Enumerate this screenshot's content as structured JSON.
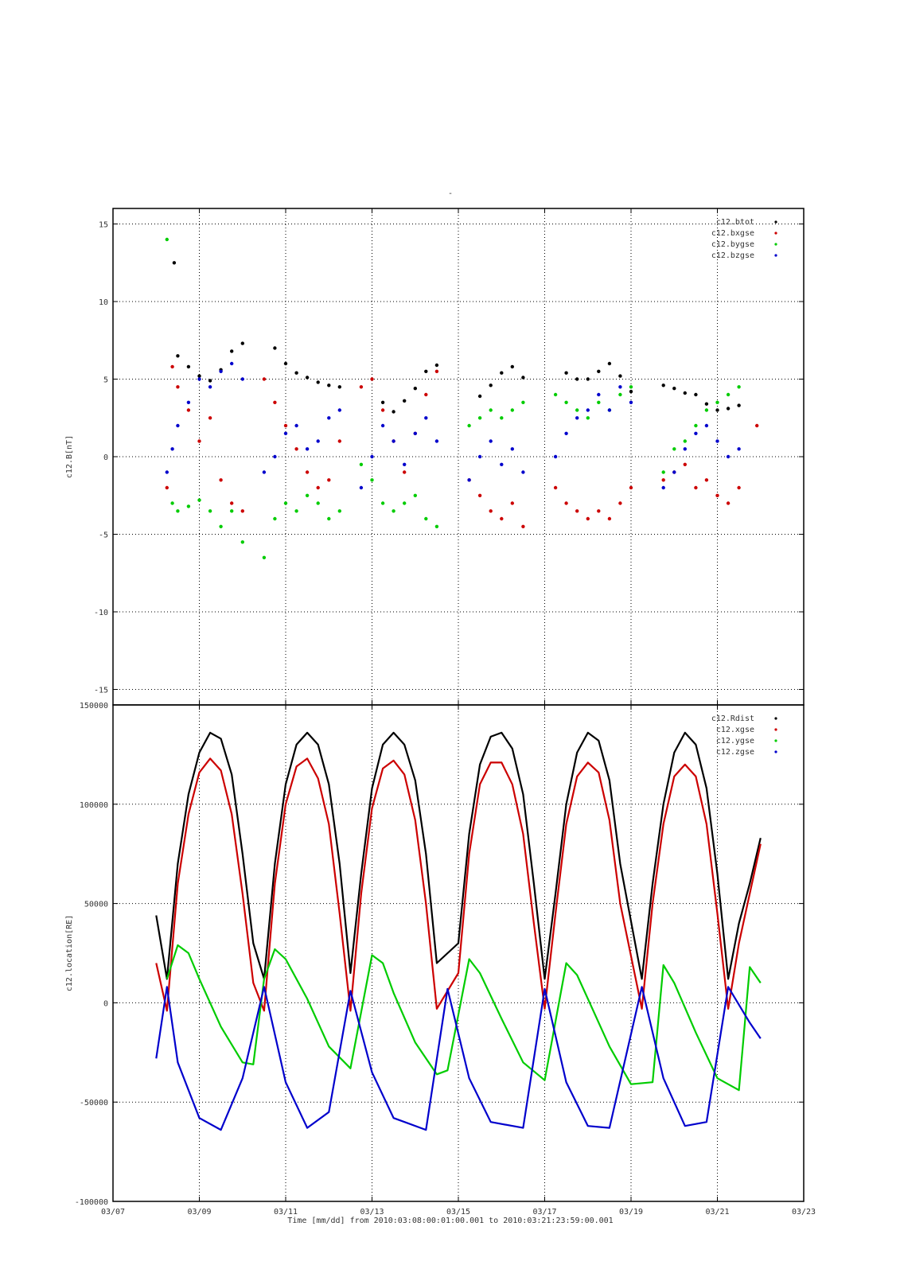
{
  "figure": {
    "top_title": "-",
    "xlabel": "Time [mm/dd]  from 2010:03:08:00:01:00.001  to  2010:03:21:23:59:00.001",
    "x_tick_labels": [
      "03/07",
      "03/09",
      "03/11",
      "03/13",
      "03/15",
      "03/17",
      "03/19",
      "03/21",
      "03/23"
    ]
  },
  "chart_data": [
    {
      "type": "scatter",
      "title": "",
      "xlabel": "",
      "ylabel": "c12.B[nT]",
      "xlim": [
        "2010-03-07",
        "2010-03-23"
      ],
      "ylim": [
        -16,
        16
      ],
      "yticks": [
        -15,
        -10,
        -5,
        0,
        5,
        10,
        15
      ],
      "grid": true,
      "legend_position": "top-right",
      "series": [
        {
          "name": "c12.btot",
          "color": "#000000",
          "x": [
            "03/08 10:00",
            "03/08 12:00",
            "03/08 18:00",
            "03/09 00:00",
            "03/09 06:00",
            "03/09 12:00",
            "03/09 18:00",
            "03/10 00:00",
            "03/10 18:00",
            "03/11 00:00",
            "03/11 06:00",
            "03/11 12:00",
            "03/11 18:00",
            "03/12 00:00",
            "03/12 06:00",
            "03/13 06:00",
            "03/13 12:00",
            "03/13 18:00",
            "03/14 00:00",
            "03/14 06:00",
            "03/14 12:00",
            "03/15 12:00",
            "03/15 18:00",
            "03/16 00:00",
            "03/16 06:00",
            "03/16 12:00",
            "03/17 12:00",
            "03/17 18:00",
            "03/18 00:00",
            "03/18 06:00",
            "03/18 12:00",
            "03/18 18:00",
            "03/19 00:00",
            "03/19 18:00",
            "03/20 00:00",
            "03/20 06:00",
            "03/20 12:00",
            "03/20 18:00",
            "03/21 00:00",
            "03/21 06:00",
            "03/21 12:00"
          ],
          "y": [
            12.5,
            6.5,
            5.8,
            5.2,
            4.9,
            5.6,
            6.8,
            7.3,
            7.0,
            6.0,
            5.4,
            5.1,
            4.8,
            4.6,
            4.5,
            3.5,
            2.9,
            3.6,
            4.4,
            5.5,
            5.9,
            3.9,
            4.6,
            5.4,
            5.8,
            5.1,
            5.4,
            5.0,
            5.0,
            5.5,
            6.0,
            5.2,
            4.2,
            4.6,
            4.4,
            4.1,
            4.0,
            3.4,
            3.0,
            3.1,
            3.3
          ]
        },
        {
          "name": "c12.bxgse",
          "color": "#cc0000",
          "x": [
            "03/08 06:00",
            "03/08 09:00",
            "03/08 12:00",
            "03/08 18:00",
            "03/09 00:00",
            "03/09 06:00",
            "03/09 12:00",
            "03/09 18:00",
            "03/10 00:00",
            "03/10 12:00",
            "03/10 18:00",
            "03/11 00:00",
            "03/11 06:00",
            "03/11 12:00",
            "03/11 18:00",
            "03/12 00:00",
            "03/12 06:00",
            "03/12 18:00",
            "03/13 00:00",
            "03/13 06:00",
            "03/13 12:00",
            "03/13 18:00",
            "03/14 00:00",
            "03/14 06:00",
            "03/14 12:00",
            "03/15 06:00",
            "03/15 12:00",
            "03/15 18:00",
            "03/16 00:00",
            "03/16 06:00",
            "03/16 12:00",
            "03/17 06:00",
            "03/17 12:00",
            "03/17 18:00",
            "03/18 00:00",
            "03/18 06:00",
            "03/18 12:00",
            "03/18 18:00",
            "03/19 00:00",
            "03/19 18:00",
            "03/20 00:00",
            "03/20 06:00",
            "03/20 12:00",
            "03/20 18:00",
            "03/21 00:00",
            "03/21 06:00",
            "03/21 12:00",
            "03/21 22:00"
          ],
          "y": [
            -2.0,
            5.8,
            4.5,
            3.0,
            1.0,
            2.5,
            -1.5,
            -3.0,
            -3.5,
            5.0,
            3.5,
            2.0,
            0.5,
            -1.0,
            -2.0,
            -1.5,
            1.0,
            4.5,
            5.0,
            3.0,
            1.0,
            -1.0,
            1.5,
            4.0,
            5.5,
            -1.5,
            -2.5,
            -3.5,
            -4.0,
            -3.0,
            -4.5,
            -2.0,
            -3.0,
            -3.5,
            -4.0,
            -3.5,
            -4.0,
            -3.0,
            -2.0,
            -1.5,
            -1.0,
            -0.5,
            -2.0,
            -1.5,
            -2.5,
            -3.0,
            -2.0,
            2.0
          ]
        },
        {
          "name": "c12.bygse",
          "color": "#00cc00",
          "x": [
            "03/08 06:00",
            "03/08 09:00",
            "03/08 12:00",
            "03/08 18:00",
            "03/09 00:00",
            "03/09 06:00",
            "03/09 12:00",
            "03/09 18:00",
            "03/10 00:00",
            "03/10 12:00",
            "03/10 18:00",
            "03/11 00:00",
            "03/11 06:00",
            "03/11 12:00",
            "03/11 18:00",
            "03/12 00:00",
            "03/12 06:00",
            "03/12 18:00",
            "03/13 00:00",
            "03/13 06:00",
            "03/13 12:00",
            "03/13 18:00",
            "03/14 00:00",
            "03/14 06:00",
            "03/14 12:00",
            "03/15 06:00",
            "03/15 12:00",
            "03/15 18:00",
            "03/16 00:00",
            "03/16 06:00",
            "03/16 12:00",
            "03/17 06:00",
            "03/17 12:00",
            "03/17 18:00",
            "03/18 00:00",
            "03/18 06:00",
            "03/18 12:00",
            "03/18 18:00",
            "03/19 00:00",
            "03/19 18:00",
            "03/20 00:00",
            "03/20 06:00",
            "03/20 12:00",
            "03/20 18:00",
            "03/21 00:00",
            "03/21 06:00",
            "03/21 12:00"
          ],
          "y": [
            14.0,
            -3.0,
            -3.5,
            -3.2,
            -2.8,
            -3.5,
            -4.5,
            -3.5,
            -5.5,
            -6.5,
            -4.0,
            -3.0,
            -3.5,
            -2.5,
            -3.0,
            -4.0,
            -3.5,
            -0.5,
            -1.5,
            -3.0,
            -3.5,
            -3.0,
            -2.5,
            -4.0,
            -4.5,
            2.0,
            2.5,
            3.0,
            2.5,
            3.0,
            3.5,
            4.0,
            3.5,
            3.0,
            2.5,
            3.5,
            3.0,
            4.0,
            4.5,
            -1.0,
            0.5,
            1.0,
            2.0,
            3.0,
            3.5,
            4.0,
            4.5
          ]
        },
        {
          "name": "c12.bzgse",
          "color": "#0000cc",
          "x": [
            "03/08 06:00",
            "03/08 09:00",
            "03/08 12:00",
            "03/08 18:00",
            "03/09 00:00",
            "03/09 06:00",
            "03/09 12:00",
            "03/09 18:00",
            "03/10 00:00",
            "03/10 12:00",
            "03/10 18:00",
            "03/11 00:00",
            "03/11 06:00",
            "03/11 12:00",
            "03/11 18:00",
            "03/12 00:00",
            "03/12 06:00",
            "03/12 18:00",
            "03/13 00:00",
            "03/13 06:00",
            "03/13 12:00",
            "03/13 18:00",
            "03/14 00:00",
            "03/14 06:00",
            "03/14 12:00",
            "03/15 06:00",
            "03/15 12:00",
            "03/15 18:00",
            "03/16 00:00",
            "03/16 06:00",
            "03/16 12:00",
            "03/17 06:00",
            "03/17 12:00",
            "03/17 18:00",
            "03/18 00:00",
            "03/18 06:00",
            "03/18 12:00",
            "03/18 18:00",
            "03/19 00:00",
            "03/19 18:00",
            "03/20 00:00",
            "03/20 06:00",
            "03/20 12:00",
            "03/20 18:00",
            "03/21 00:00",
            "03/21 06:00",
            "03/21 12:00"
          ],
          "y": [
            -1.0,
            0.5,
            2.0,
            3.5,
            5.0,
            4.5,
            5.5,
            6.0,
            5.0,
            -1.0,
            0.0,
            1.5,
            2.0,
            0.5,
            1.0,
            2.5,
            3.0,
            -2.0,
            0.0,
            2.0,
            1.0,
            -0.5,
            1.5,
            2.5,
            1.0,
            -1.5,
            0.0,
            1.0,
            -0.5,
            0.5,
            -1.0,
            0.0,
            1.5,
            2.5,
            3.0,
            4.0,
            3.0,
            4.5,
            3.5,
            -2.0,
            -1.0,
            0.5,
            1.5,
            2.0,
            1.0,
            0.0,
            0.5
          ]
        }
      ]
    },
    {
      "type": "line",
      "title": "",
      "xlabel": "Time [mm/dd]",
      "ylabel": "c12.location[RE]",
      "xlim": [
        "2010-03-07",
        "2010-03-23"
      ],
      "ylim": [
        -100000,
        150000
      ],
      "yticks": [
        -100000,
        -50000,
        0,
        50000,
        100000,
        150000
      ],
      "grid": true,
      "legend_position": "top-right",
      "series": [
        {
          "name": "c12.Rdist",
          "color": "#000000",
          "x": [
            "03/08 00:00",
            "03/08 06:00",
            "03/08 12:00",
            "03/08 18:00",
            "03/09 00:00",
            "03/09 06:00",
            "03/09 12:00",
            "03/09 18:00",
            "03/10 00:00",
            "03/10 06:00",
            "03/10 12:00",
            "03/10 18:00",
            "03/11 00:00",
            "03/11 06:00",
            "03/11 12:00",
            "03/11 18:00",
            "03/12 00:00",
            "03/12 06:00",
            "03/12 12:00",
            "03/12 18:00",
            "03/13 00:00",
            "03/13 06:00",
            "03/13 12:00",
            "03/13 18:00",
            "03/14 00:00",
            "03/14 06:00",
            "03/14 12:00",
            "03/15 00:00",
            "03/15 06:00",
            "03/15 12:00",
            "03/15 18:00",
            "03/16 00:00",
            "03/16 06:00",
            "03/16 12:00",
            "03/16 18:00",
            "03/17 00:00",
            "03/17 06:00",
            "03/17 12:00",
            "03/17 18:00",
            "03/18 00:00",
            "03/18 06:00",
            "03/18 12:00",
            "03/18 18:00",
            "03/19 06:00",
            "03/19 12:00",
            "03/19 18:00",
            "03/20 00:00",
            "03/20 06:00",
            "03/20 12:00",
            "03/20 18:00",
            "03/21 00:00",
            "03/21 06:00",
            "03/21 12:00",
            "03/21 18:00",
            "03/22 00:00"
          ],
          "y": [
            44000,
            12000,
            70000,
            105000,
            126000,
            136000,
            133000,
            115000,
            75000,
            30000,
            12000,
            70000,
            110000,
            130000,
            136000,
            130000,
            110000,
            70000,
            15000,
            65000,
            108000,
            130000,
            136000,
            130000,
            112000,
            75000,
            20000,
            30000,
            85000,
            120000,
            134000,
            136000,
            128000,
            105000,
            60000,
            12000,
            55000,
            100000,
            126000,
            136000,
            132000,
            112000,
            70000,
            12000,
            60000,
            100000,
            126000,
            136000,
            130000,
            108000,
            65000,
            12000,
            40000,
            60000,
            83000
          ]
        },
        {
          "name": "c12.xgse",
          "color": "#cc0000",
          "x": [
            "03/08 00:00",
            "03/08 06:00",
            "03/08 12:00",
            "03/08 18:00",
            "03/09 00:00",
            "03/09 06:00",
            "03/09 12:00",
            "03/09 18:00",
            "03/10 00:00",
            "03/10 06:00",
            "03/10 12:00",
            "03/10 18:00",
            "03/11 00:00",
            "03/11 06:00",
            "03/11 12:00",
            "03/11 18:00",
            "03/12 00:00",
            "03/12 06:00",
            "03/12 12:00",
            "03/12 18:00",
            "03/13 00:00",
            "03/13 06:00",
            "03/13 12:00",
            "03/13 18:00",
            "03/14 00:00",
            "03/14 06:00",
            "03/14 12:00",
            "03/15 00:00",
            "03/15 06:00",
            "03/15 12:00",
            "03/15 18:00",
            "03/16 00:00",
            "03/16 06:00",
            "03/16 12:00",
            "03/16 18:00",
            "03/17 00:00",
            "03/17 06:00",
            "03/17 12:00",
            "03/17 18:00",
            "03/18 00:00",
            "03/18 06:00",
            "03/18 12:00",
            "03/18 18:00",
            "03/19 06:00",
            "03/19 12:00",
            "03/19 18:00",
            "03/20 00:00",
            "03/20 06:00",
            "03/20 12:00",
            "03/20 18:00",
            "03/21 00:00",
            "03/21 06:00",
            "03/21 12:00",
            "03/21 18:00",
            "03/22 00:00"
          ],
          "y": [
            20000,
            -4000,
            60000,
            95000,
            116000,
            123000,
            117000,
            95000,
            55000,
            10000,
            -4000,
            60000,
            100000,
            119000,
            123000,
            113000,
            90000,
            45000,
            -4000,
            55000,
            98000,
            118000,
            122000,
            115000,
            92000,
            50000,
            -3000,
            15000,
            75000,
            110000,
            121000,
            121000,
            110000,
            85000,
            40000,
            -3000,
            45000,
            90000,
            114000,
            121000,
            116000,
            92000,
            50000,
            -3000,
            50000,
            90000,
            114000,
            120000,
            114000,
            90000,
            45000,
            -3000,
            30000,
            55000,
            80000
          ]
        },
        {
          "name": "c12.ygse",
          "color": "#00cc00",
          "x": [
            "03/08 06:00",
            "03/08 12:00",
            "03/08 18:00",
            "03/09 00:00",
            "03/09 12:00",
            "03/10 00:00",
            "03/10 06:00",
            "03/10 12:00",
            "03/10 18:00",
            "03/11 00:00",
            "03/11 12:00",
            "03/12 00:00",
            "03/12 12:00",
            "03/13 00:00",
            "03/13 06:00",
            "03/13 12:00",
            "03/14 00:00",
            "03/14 12:00",
            "03/14 18:00",
            "03/15 06:00",
            "03/15 12:00",
            "03/16 00:00",
            "03/16 12:00",
            "03/17 00:00",
            "03/17 12:00",
            "03/17 18:00",
            "03/18 00:00",
            "03/18 12:00",
            "03/19 00:00",
            "03/19 12:00",
            "03/19 18:00",
            "03/20 00:00",
            "03/20 12:00",
            "03/21 00:00",
            "03/21 12:00",
            "03/21 18:00",
            "03/22 00:00"
          ],
          "y": [
            12000,
            29000,
            25000,
            12000,
            -12000,
            -30000,
            -31000,
            12000,
            27000,
            22000,
            2000,
            -22000,
            -33000,
            24000,
            20000,
            5000,
            -20000,
            -36000,
            -34000,
            22000,
            15000,
            -8000,
            -30000,
            -39000,
            20000,
            14000,
            2000,
            -22000,
            -41000,
            -40000,
            19000,
            10000,
            -15000,
            -38000,
            -44000,
            18000,
            10000
          ]
        },
        {
          "name": "c12.zgse",
          "color": "#0000cc",
          "x": [
            "03/08 00:00",
            "03/08 06:00",
            "03/08 12:00",
            "03/09 00:00",
            "03/09 12:00",
            "03/10 00:00",
            "03/10 12:00",
            "03/11 00:00",
            "03/11 12:00",
            "03/12 00:00",
            "03/12 12:00",
            "03/13 00:00",
            "03/13 12:00",
            "03/14 06:00",
            "03/14 18:00",
            "03/15 06:00",
            "03/15 18:00",
            "03/16 12:00",
            "03/17 00:00",
            "03/17 12:00",
            "03/18 00:00",
            "03/18 12:00",
            "03/19 06:00",
            "03/19 18:00",
            "03/20 06:00",
            "03/20 18:00",
            "03/21 06:00",
            "03/21 18:00",
            "03/22 00:00"
          ],
          "y": [
            -28000,
            8000,
            -30000,
            -58000,
            -64000,
            -38000,
            8000,
            -40000,
            -63000,
            -55000,
            6000,
            -35000,
            -58000,
            -64000,
            7000,
            -38000,
            -60000,
            -63000,
            7000,
            -40000,
            -62000,
            -63000,
            8000,
            -38000,
            -62000,
            -60000,
            8000,
            -10000,
            -18000
          ]
        }
      ]
    }
  ]
}
